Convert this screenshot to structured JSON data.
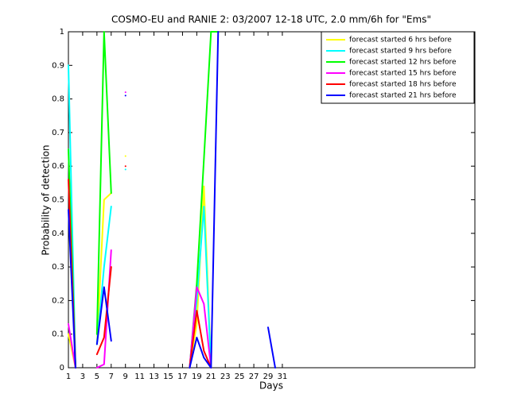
{
  "chart_data": {
    "type": "line",
    "title": "COSMO-EU and RANIE 2: 03/2007 12-18 UTC, 2.0 mm/6h for \"Ems\"",
    "x_label": "Days",
    "y_label": "Probability of detection",
    "x": [
      1,
      2,
      3,
      4,
      5,
      6,
      7,
      8,
      9,
      10,
      11,
      12,
      13,
      14,
      15,
      16,
      17,
      18,
      19,
      20,
      21,
      22,
      23,
      24,
      25,
      26,
      27,
      28,
      29,
      30,
      31
    ],
    "xlim": [
      1,
      58
    ],
    "ylim": [
      0,
      1
    ],
    "xticks": [
      1,
      3,
      5,
      7,
      9,
      11,
      13,
      15,
      17,
      19,
      21,
      23,
      25,
      27,
      29,
      31
    ],
    "yticks": [
      0,
      0.1,
      0.2,
      0.3,
      0.4,
      0.5,
      0.6,
      0.7,
      0.8,
      0.9,
      1
    ],
    "series": [
      {
        "name": "forecast started 6 hrs before",
        "color": "#ffff00",
        "values": [
          0.1,
          0,
          null,
          null,
          0.07,
          0.5,
          0.52,
          null,
          0.63,
          null,
          null,
          null,
          null,
          null,
          null,
          null,
          null,
          0,
          0.13,
          0.54,
          0,
          null,
          null,
          null,
          null,
          null,
          null,
          null,
          null,
          null,
          null
        ]
      },
      {
        "name": "forecast started 9 hrs before",
        "color": "#00ffff",
        "values": [
          0.9,
          0,
          null,
          null,
          0.07,
          0.3,
          0.48,
          null,
          0.59,
          null,
          null,
          null,
          null,
          null,
          null,
          null,
          null,
          0,
          0.2,
          0.48,
          0,
          null,
          null,
          null,
          null,
          null,
          null,
          null,
          null,
          null,
          null
        ]
      },
      {
        "name": "forecast started 12 hrs before",
        "color": "#00ff00",
        "values": [
          0.65,
          0,
          null,
          null,
          0.1,
          1,
          0.52,
          null,
          null,
          null,
          null,
          null,
          null,
          null,
          null,
          null,
          null,
          0,
          0.25,
          0.62,
          1,
          1,
          null,
          null,
          null,
          null,
          null,
          null,
          null,
          null,
          null
        ]
      },
      {
        "name": "forecast started 15 hrs before",
        "color": "#ff00ff",
        "values": [
          0.13,
          0,
          null,
          null,
          0,
          0.01,
          0.35,
          null,
          0.82,
          null,
          null,
          null,
          null,
          null,
          null,
          null,
          null,
          0,
          0.24,
          0.19,
          0,
          null,
          null,
          null,
          null,
          null,
          null,
          null,
          null,
          null,
          null
        ]
      },
      {
        "name": "forecast started 18 hrs before",
        "color": "#ff0000",
        "values": [
          0.56,
          0,
          null,
          null,
          0.04,
          0.09,
          0.3,
          null,
          0.6,
          null,
          null,
          null,
          null,
          null,
          null,
          null,
          null,
          0,
          0.17,
          0.05,
          0,
          null,
          null,
          null,
          null,
          null,
          null,
          null,
          null,
          null,
          null
        ]
      },
      {
        "name": "forecast started 21 hrs before",
        "color": "#0000ff",
        "values": [
          0.47,
          0,
          null,
          null,
          0.07,
          0.24,
          0.08,
          null,
          0.81,
          null,
          null,
          null,
          null,
          null,
          null,
          null,
          null,
          0,
          0.09,
          0.03,
          0,
          1,
          null,
          null,
          null,
          null,
          null,
          null,
          0.12,
          0,
          null
        ]
      }
    ]
  }
}
